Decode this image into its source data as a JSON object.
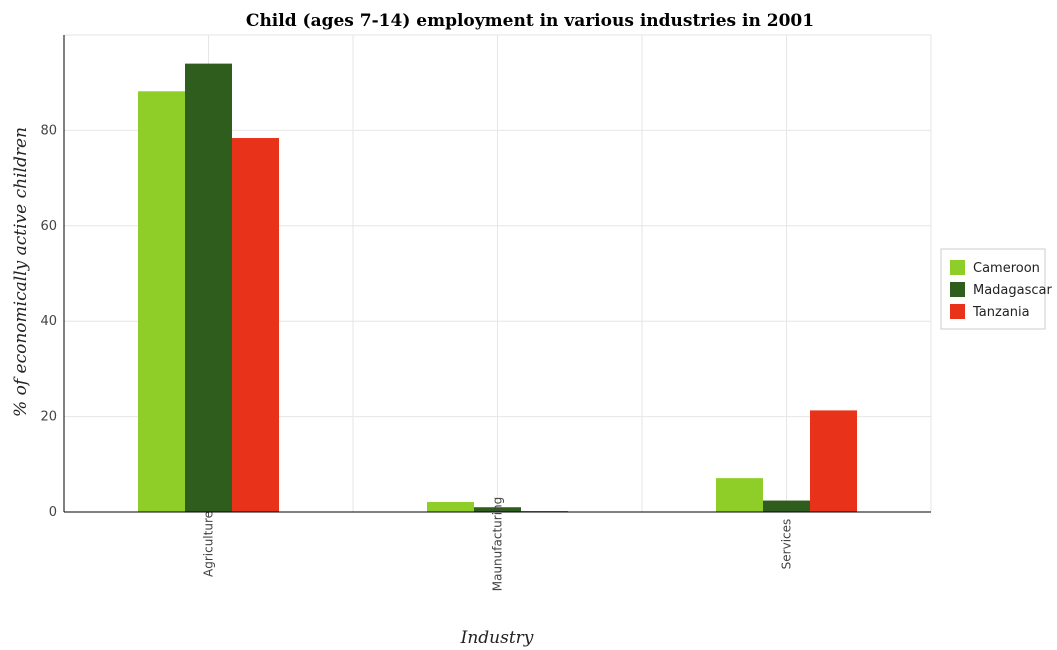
{
  "chart_data": {
    "type": "bar",
    "title": "Child (ages 7-14) employment in various industries in 2001",
    "xlabel": "Industry",
    "ylabel": "% of economically active children",
    "categories": [
      "Agriculture",
      "Maunufacturing",
      "Services"
    ],
    "series": [
      {
        "name": "Cameroon",
        "color": "#8fce28",
        "values": [
          88.2,
          2.1,
          7.1
        ]
      },
      {
        "name": "Madagascar",
        "color": "#2f5d1e",
        "values": [
          94.0,
          1.0,
          2.4
        ]
      },
      {
        "name": "Tanzania",
        "color": "#e8321a",
        "values": [
          78.4,
          0.2,
          21.3
        ]
      }
    ],
    "ylim": [
      0,
      100
    ],
    "yticks": [
      0,
      20,
      40,
      60,
      80
    ],
    "grid": true,
    "legend_position": "right"
  }
}
